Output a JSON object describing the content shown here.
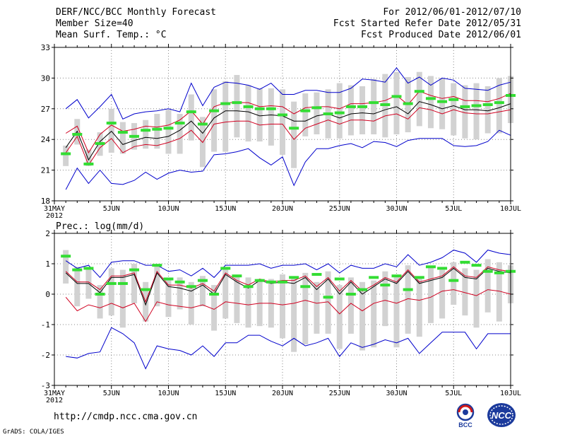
{
  "header": {
    "title": "DERF/NCC/BCC Monthly Forecast",
    "member_size": "Member Size=40",
    "variable": "Mean Surf. Temp.: °C",
    "period": "For 2012/06/01-2012/07/10",
    "start_date": "Fcst Started Refer Date 2012/05/31",
    "produced_date": "Fcst Produced Date 2012/06/01"
  },
  "footer": {
    "url": "http://cmdp.ncc.cma.gov.cn",
    "grads": "GrADS: COLA/IGES",
    "logo_bcc": "BCC",
    "logo_ncc": "NCC"
  },
  "colors": {
    "mean": "#000000",
    "inner": "#d00020",
    "outer": "#0000cc",
    "obs": "#33dd33",
    "box": "#d2d2d2",
    "grid": "#888888"
  },
  "chart_data": [
    {
      "type": "box-line",
      "title": "Mean Surf. Temp.: °C",
      "ylabel": "°C",
      "ylim": [
        18,
        33
      ],
      "yticks": [
        18,
        21,
        24,
        27,
        30,
        33
      ],
      "xlim": [
        0,
        40
      ],
      "xticks": [
        {
          "d": 0,
          "label": "31MAY"
        },
        {
          "d": 5,
          "label": "5JUN"
        },
        {
          "d": 10,
          "label": "10JUN"
        },
        {
          "d": 15,
          "label": "15JUN"
        },
        {
          "d": 20,
          "label": "20JUN"
        },
        {
          "d": 25,
          "label": "25JUN"
        },
        {
          "d": 30,
          "label": "30JUN"
        },
        {
          "d": 35,
          "label": "5JUL"
        },
        {
          "d": 40,
          "label": "10JUL"
        }
      ],
      "year_label": "2012",
      "days": [
        1,
        2,
        3,
        4,
        5,
        6,
        7,
        8,
        9,
        10,
        11,
        12,
        13,
        14,
        15,
        16,
        17,
        18,
        19,
        20,
        21,
        22,
        23,
        24,
        25,
        26,
        27,
        28,
        29,
        30,
        31,
        32,
        33,
        34,
        35,
        36,
        37,
        38,
        39,
        40
      ],
      "mean": [
        23.2,
        24.8,
        22.0,
        23.8,
        24.8,
        23.5,
        23.9,
        24.2,
        24.1,
        24.3,
        24.9,
        25.8,
        24.6,
        26.1,
        26.8,
        26.8,
        26.7,
        26.3,
        26.4,
        26.3,
        25.8,
        25.8,
        26.3,
        26.5,
        26.1,
        26.5,
        26.6,
        26.5,
        26.9,
        27.2,
        26.5,
        27.7,
        27.4,
        27.0,
        27.3,
        26.9,
        26.9,
        26.8,
        27.1,
        27.5
      ],
      "inner_upper": [
        24.6,
        25.3,
        22.7,
        24.5,
        25.4,
        24.8,
        25.0,
        25.3,
        25.2,
        25.4,
        25.9,
        26.8,
        25.5,
        27.2,
        27.6,
        27.6,
        27.6,
        27.2,
        27.3,
        27.2,
        26.5,
        27.1,
        27.2,
        27.2,
        27.0,
        27.5,
        27.5,
        27.6,
        27.8,
        28.3,
        27.4,
        28.7,
        28.3,
        28.0,
        28.2,
        27.8,
        27.8,
        27.7,
        28.0,
        28.5
      ],
      "inner_lower": [
        22.7,
        24.3,
        21.5,
        23.2,
        24.1,
        22.7,
        23.3,
        23.5,
        23.4,
        23.7,
        24.1,
        24.9,
        23.7,
        25.5,
        25.7,
        25.8,
        25.8,
        25.4,
        25.5,
        25.5,
        24.0,
        25.1,
        25.5,
        25.9,
        25.5,
        25.9,
        25.9,
        25.8,
        26.3,
        26.5,
        26.0,
        27.1,
        26.9,
        26.5,
        26.9,
        26.6,
        26.5,
        26.5,
        26.7,
        26.9
      ],
      "outer_upper": [
        27.0,
        27.9,
        26.1,
        27.2,
        28.4,
        26.0,
        26.5,
        26.7,
        26.8,
        27.0,
        26.7,
        29.5,
        27.3,
        29.1,
        29.6,
        29.5,
        29.3,
        28.9,
        29.5,
        28.4,
        28.4,
        28.8,
        28.8,
        28.6,
        28.6,
        29.0,
        29.9,
        29.8,
        29.6,
        31.0,
        29.5,
        30.1,
        29.3,
        30.0,
        29.8,
        29.0,
        28.9,
        28.8,
        29.3,
        29.6
      ],
      "outer_lower": [
        19.1,
        21.2,
        19.7,
        21.0,
        19.7,
        19.6,
        20.0,
        20.8,
        20.1,
        20.7,
        21.0,
        20.8,
        20.9,
        22.5,
        22.6,
        22.8,
        23.1,
        22.2,
        21.5,
        22.3,
        19.5,
        21.8,
        23.1,
        23.1,
        23.4,
        23.6,
        23.2,
        23.8,
        23.7,
        23.3,
        23.9,
        24.1,
        24.1,
        24.1,
        23.4,
        23.3,
        23.4,
        23.8,
        24.9,
        24.4
      ],
      "box_high": [
        23.4,
        26.0,
        23.0,
        24.7,
        27.0,
        25.7,
        25.6,
        25.9,
        26.5,
        26.9,
        26.5,
        28.4,
        26.2,
        28.9,
        29.7,
        30.3,
        29.3,
        29.0,
        29.0,
        28.9,
        27.7,
        28.5,
        28.6,
        28.9,
        29.5,
        29.3,
        29.2,
        29.9,
        30.4,
        30.6,
        30.1,
        30.6,
        30.2,
        30.0,
        29.5,
        29.3,
        29.5,
        29.2,
        30.0,
        30.2
      ],
      "box_low": [
        21.4,
        23.5,
        21.4,
        22.4,
        22.7,
        22.6,
        23.0,
        23.1,
        23.1,
        22.6,
        22.6,
        23.9,
        21.3,
        22.8,
        22.8,
        24.2,
        23.8,
        23.8,
        23.4,
        22.5,
        21.2,
        24.3,
        24.5,
        24.1,
        24.1,
        24.4,
        24.5,
        24.5,
        24.2,
        24.5,
        24.7,
        25.3,
        25.1,
        25.0,
        24.4,
        24.1,
        24.0,
        24.6,
        24.6,
        25.6
      ],
      "obs": [
        22.6,
        24.5,
        21.6,
        23.6,
        25.6,
        24.7,
        24.3,
        24.9,
        25.0,
        25.1,
        25.6,
        26.7,
        25.5,
        26.8,
        27.5,
        27.6,
        27.2,
        27.0,
        27.0,
        26.4,
        25.1,
        26.8,
        27.1,
        26.5,
        26.6,
        27.2,
        27.2,
        27.6,
        27.4,
        28.2,
        27.5,
        28.7,
        28.0,
        27.7,
        27.9,
        27.2,
        27.3,
        27.4,
        27.6,
        28.3
      ]
    },
    {
      "type": "box-line",
      "title": "Prec.: log(mm/d)",
      "ylabel": "log(mm/d)",
      "ylim": [
        -3,
        2
      ],
      "yticks": [
        -3,
        -2,
        -1,
        0,
        1,
        2
      ],
      "xlim": [
        0,
        40
      ],
      "xticks": [
        {
          "d": 0,
          "label": "31MAY"
        },
        {
          "d": 5,
          "label": "5JUN"
        },
        {
          "d": 10,
          "label": "10JUN"
        },
        {
          "d": 15,
          "label": "15JUN"
        },
        {
          "d": 20,
          "label": "20JUN"
        },
        {
          "d": 25,
          "label": "25JUN"
        },
        {
          "d": 30,
          "label": "30JUN"
        },
        {
          "d": 35,
          "label": "5JUL"
        },
        {
          "d": 40,
          "label": "10JUL"
        }
      ],
      "year_label": "2012",
      "days": [
        1,
        2,
        3,
        4,
        5,
        6,
        7,
        8,
        9,
        10,
        11,
        12,
        13,
        14,
        15,
        16,
        17,
        18,
        19,
        20,
        21,
        22,
        23,
        24,
        25,
        26,
        27,
        28,
        29,
        30,
        31,
        32,
        33,
        34,
        35,
        36,
        37,
        38,
        39,
        40
      ],
      "mean": [
        0.7,
        0.35,
        0.35,
        0.05,
        0.55,
        0.55,
        0.65,
        -0.35,
        0.7,
        0.25,
        0.2,
        0.1,
        0.3,
        0.0,
        0.65,
        0.4,
        0.2,
        0.45,
        0.35,
        0.4,
        0.35,
        0.55,
        0.15,
        0.5,
        0.0,
        0.4,
        0.0,
        0.25,
        0.5,
        0.35,
        0.75,
        0.35,
        0.45,
        0.55,
        0.85,
        0.55,
        0.5,
        0.85,
        0.75,
        0.7
      ],
      "inner_upper": [
        0.75,
        0.4,
        0.4,
        0.15,
        0.6,
        0.6,
        0.7,
        -0.25,
        0.75,
        0.3,
        0.3,
        0.2,
        0.35,
        0.1,
        0.7,
        0.45,
        0.3,
        0.5,
        0.4,
        0.45,
        0.45,
        0.6,
        0.25,
        0.55,
        0.1,
        0.45,
        0.1,
        0.3,
        0.55,
        0.4,
        0.8,
        0.4,
        0.5,
        0.6,
        0.9,
        0.6,
        0.55,
        0.9,
        0.8,
        0.75
      ],
      "inner_lower": [
        -0.1,
        -0.55,
        -0.35,
        -0.45,
        -0.3,
        -0.45,
        -0.3,
        -0.9,
        -0.25,
        -0.35,
        -0.4,
        -0.45,
        -0.35,
        -0.5,
        -0.25,
        -0.3,
        -0.35,
        -0.3,
        -0.3,
        -0.35,
        -0.3,
        -0.2,
        -0.3,
        -0.25,
        -0.65,
        -0.3,
        -0.55,
        -0.3,
        -0.2,
        -0.3,
        -0.15,
        -0.2,
        -0.1,
        0.1,
        0.15,
        0.05,
        -0.05,
        0.15,
        0.1,
        0.0
      ],
      "outer_upper": [
        1.1,
        0.85,
        0.95,
        0.55,
        1.05,
        1.1,
        1.1,
        0.95,
        0.95,
        0.75,
        0.8,
        0.6,
        0.85,
        0.55,
        0.95,
        0.95,
        0.95,
        1.0,
        0.85,
        0.95,
        0.95,
        1.0,
        0.8,
        1.0,
        0.7,
        0.95,
        0.85,
        0.85,
        1.0,
        0.9,
        1.3,
        0.95,
        1.05,
        1.2,
        1.45,
        1.35,
        1.05,
        1.45,
        1.35,
        1.3
      ],
      "outer_lower": [
        -2.05,
        -2.1,
        -1.95,
        -1.9,
        -1.1,
        -1.3,
        -1.6,
        -2.45,
        -1.7,
        -1.8,
        -1.85,
        -2.0,
        -1.7,
        -2.05,
        -1.6,
        -1.6,
        -1.35,
        -1.35,
        -1.55,
        -1.7,
        -1.45,
        -1.7,
        -1.6,
        -1.45,
        -2.05,
        -1.6,
        -1.75,
        -1.65,
        -1.5,
        -1.6,
        -1.45,
        -1.95,
        -1.6,
        -1.25,
        -1.25,
        -1.25,
        -1.8,
        -1.3,
        -1.3,
        -1.3
      ],
      "box_high": [
        1.45,
        0.9,
        0.85,
        0.3,
        0.85,
        0.8,
        1.0,
        0.4,
        0.95,
        0.5,
        0.55,
        0.4,
        0.6,
        0.3,
        0.9,
        0.6,
        0.55,
        0.5,
        0.5,
        0.65,
        0.55,
        0.7,
        0.4,
        0.75,
        0.3,
        0.55,
        0.4,
        0.45,
        0.75,
        0.6,
        0.95,
        0.55,
        0.9,
        0.8,
        1.05,
        0.85,
        0.8,
        1.15,
        1.05,
        0.95
      ],
      "box_low": [
        0.35,
        -0.4,
        -0.15,
        -0.8,
        -0.7,
        -1.1,
        -0.3,
        -0.9,
        -0.4,
        -0.75,
        -0.5,
        -1.0,
        -0.4,
        -1.2,
        -0.8,
        -0.95,
        -1.1,
        -1.05,
        -1.1,
        -1.45,
        -1.9,
        -1.65,
        -1.3,
        -1.3,
        -1.8,
        -1.3,
        -1.85,
        -1.75,
        -1.05,
        -1.75,
        -1.3,
        -1.4,
        -0.95,
        -0.8,
        -0.35,
        -0.7,
        -1.1,
        -0.6,
        -0.9,
        -0.3
      ],
      "obs": [
        1.25,
        0.8,
        0.85,
        0.0,
        0.35,
        0.35,
        0.8,
        0.15,
        0.95,
        0.5,
        0.4,
        0.25,
        0.45,
        0.0,
        0.85,
        0.6,
        0.25,
        0.45,
        0.4,
        0.4,
        0.55,
        0.25,
        0.65,
        -0.1,
        0.5,
        0.0,
        0.15,
        0.55,
        0.3,
        0.6,
        0.15,
        0.55,
        0.9,
        0.85,
        0.45,
        1.05,
        0.95,
        0.75,
        0.7,
        0.75
      ]
    }
  ]
}
